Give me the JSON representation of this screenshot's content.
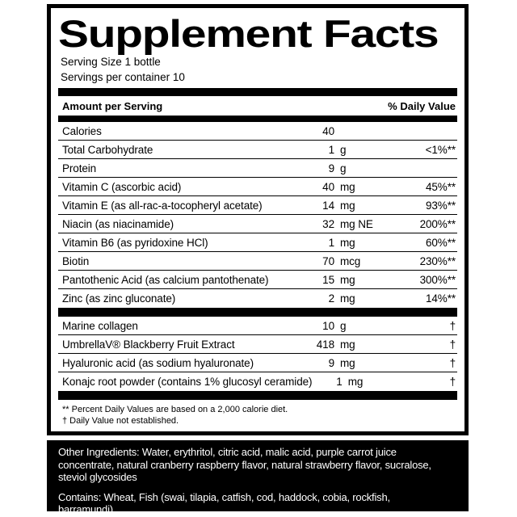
{
  "colors": {
    "ink": "#000000",
    "paper": "#ffffff",
    "panel_bg": "#000000",
    "panel_text": "#ffffff"
  },
  "label": {
    "title": "Supplement Facts",
    "serving_size": "Serving Size 1 bottle",
    "servings_per_container": "Servings per container 10",
    "header": {
      "amount": "Amount per Serving",
      "daily_value": "% Daily Value"
    },
    "rows_main": [
      {
        "name": "Calories",
        "amount": "40",
        "unit": "",
        "dv": ""
      },
      {
        "name": "Total Carbohydrate",
        "amount": "1",
        "unit": "g",
        "dv": "<1%**"
      },
      {
        "name": "Protein",
        "amount": "9",
        "unit": "g",
        "dv": ""
      },
      {
        "name": "Vitamin C (ascorbic acid)",
        "amount": "40",
        "unit": "mg",
        "dv": "45%**"
      },
      {
        "name": "Vitamin E (as all-rac-a-tocopheryl acetate)",
        "amount": "14",
        "unit": "mg",
        "dv": "93%**"
      },
      {
        "name": "Niacin (as niacinamide)",
        "amount": "32",
        "unit": "mg NE",
        "dv": "200%**"
      },
      {
        "name": "Vitamin B6 (as pyridoxine HCl)",
        "amount": "1",
        "unit": "mg",
        "dv": "60%**"
      },
      {
        "name": "Biotin",
        "amount": "70",
        "unit": "mcg",
        "dv": "230%**"
      },
      {
        "name": "Pantothenic Acid (as calcium pantothenate)",
        "amount": "15",
        "unit": "mg",
        "dv": "300%**"
      },
      {
        "name": "Zinc (as zinc gluconate)",
        "amount": "2",
        "unit": "mg",
        "dv": "14%**"
      }
    ],
    "rows_botanical": [
      {
        "name": "Marine collagen",
        "amount": "10",
        "unit": "g",
        "dv": "†"
      },
      {
        "name": "UmbrellaV® Blackberry Fruit Extract",
        "amount": "418",
        "unit": "mg",
        "dv": "†"
      },
      {
        "name": "Hyaluronic acid (as sodium hyaluronate)",
        "amount": "9",
        "unit": "mg",
        "dv": "†"
      },
      {
        "name": "Konajc root powder (contains 1% glucosyl ceramide)",
        "amount": "1",
        "unit": "mg",
        "dv": "†"
      }
    ],
    "footnotes": [
      "** Percent Daily Values are based on a 2,000 calorie diet.",
      "† Daily Value not established."
    ]
  },
  "ingredients_panel": {
    "other_ingredients": "Other Ingredients: Water, erythritol, citric acid, malic acid, purple carrot juice concentrate, natural cranberry raspberry flavor, natural strawberry flavor, sucralose, steviol glycosides",
    "other_ingredients_lines": [
      "Other Ingredients: Water, erythritol, citric acid, malic acid, purple carrot juice",
      "concentrate, natural cranberry raspberry flavor, natural strawberry flavor, sucralose,",
      "steviol glycosides"
    ],
    "contains": "Contains: Wheat, Fish (swai, tilapia, catfish, cod, haddock, cobia, rockfish, barramundi)",
    "contains_lines": [
      "Contains: Wheat, Fish (swai, tilapia, catfish, cod, haddock, cobia, rockfish,",
      "barramundi)"
    ]
  }
}
